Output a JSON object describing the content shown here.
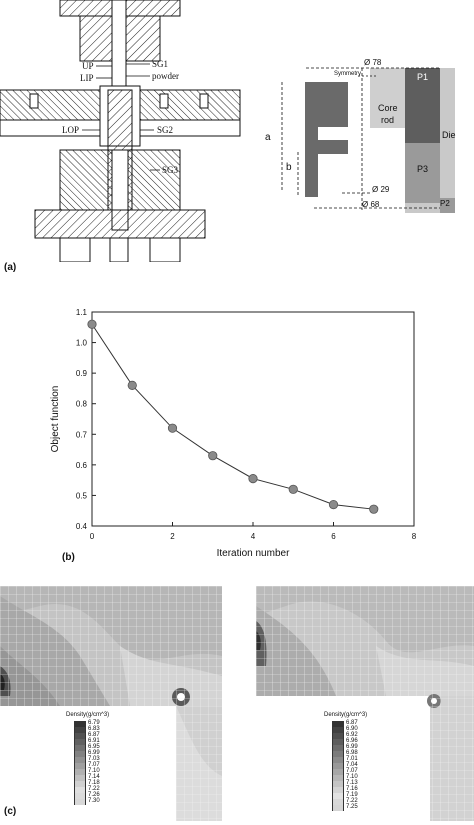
{
  "panel_a": {
    "label": "(a)",
    "press_labels": [
      "UP",
      "LIP",
      "LOP",
      "SG1",
      "powder",
      "SG2",
      "SG3"
    ],
    "schematic": {
      "symmetry": "Symmetry",
      "d78": "Ø 78",
      "d29": "Ø 29",
      "d68": "Ø 68",
      "a": "a",
      "b": "b",
      "core_rod": [
        "Core",
        "rod"
      ],
      "die": "Die",
      "p1": "P1",
      "p2": "P2",
      "p3": "P3"
    }
  },
  "panel_b": {
    "label": "(b)"
  },
  "panel_c": {
    "label": "(c)",
    "left_legend": {
      "title": "Density(g/cm^3)",
      "values": [
        "6.79",
        "6.83",
        "6.87",
        "6.91",
        "6.95",
        "6.99",
        "7.03",
        "7.07",
        "7.10",
        "7.14",
        "7.18",
        "7.22",
        "7.26",
        "7.30"
      ]
    },
    "right_legend": {
      "title": "Density(g/cm^3)",
      "values": [
        "6.87",
        "6.90",
        "6.92",
        "6.96",
        "6.99",
        "6.98",
        "7.01",
        "7.04",
        "7.07",
        "7.10",
        "7.13",
        "7.16",
        "7.19",
        "7.22",
        "7.25"
      ]
    }
  },
  "chart_data": {
    "type": "line",
    "title": "",
    "xlabel": "Iteration number",
    "ylabel": "Object function",
    "x": [
      0,
      1,
      2,
      3,
      4,
      5,
      6,
      7
    ],
    "series": [
      {
        "values": [
          1.06,
          0.86,
          0.72,
          0.63,
          0.555,
          0.52,
          0.47,
          0.455
        ]
      }
    ],
    "xlim": [
      0,
      8
    ],
    "ylim": [
      0.4,
      1.1
    ],
    "xticks": [
      0,
      2,
      4,
      6,
      8
    ],
    "yticks": [
      0.4,
      0.5,
      0.6,
      0.7,
      0.8,
      0.9,
      1.0,
      1.1
    ],
    "xtick_labels": [
      "0",
      "2",
      "4",
      "6",
      "8"
    ],
    "ytick_labels": [
      "0.4",
      "0.5",
      "0.6",
      "0.7",
      "0.8",
      "0.9",
      "1.0",
      "1.1"
    ],
    "grid": false,
    "marker_color": "#8a8a8a",
    "line_color": "#333333"
  }
}
